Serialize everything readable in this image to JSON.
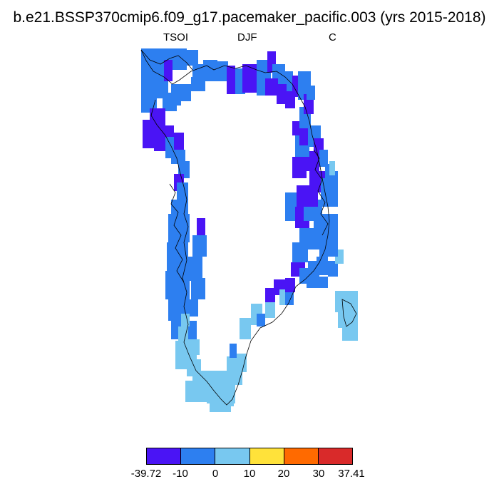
{
  "title": "b.e21.BSSP370cmip6.f09_g17.pacemaker_pacific.003 (yrs 2015-2018)",
  "subtitle": {
    "left": "TSOI",
    "center": "DJF",
    "right": "C"
  },
  "legend": {
    "labels": [
      "-39.72",
      "-10",
      "0",
      "10",
      "20",
      "30",
      "37.41"
    ],
    "colors": [
      "#4a14f5",
      "#2d7ff0",
      "#78c8f0",
      "#ffe23a",
      "#ff6a00",
      "#d92a2a"
    ]
  },
  "map": {
    "colors": {
      "deep": "#4a14f5",
      "mid": "#2d7ff0",
      "light": "#78c8f0"
    }
  }
}
